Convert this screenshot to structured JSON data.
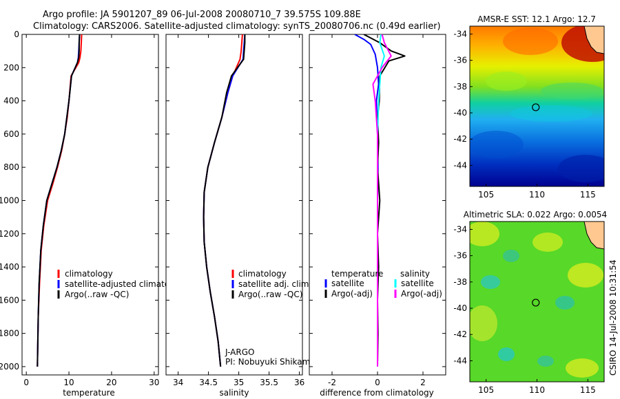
{
  "figure": {
    "title_line1": "Argo profile: JA 5901207_89 06-Jul-2008 20080710_7 39.575S 109.88E",
    "title_line2": "Climatology: CARS2006. Satellite-adjusted climatology: synTS_20080706.nc (0.49d earlier)",
    "footer": "CSIRO 14-Jul-2008 10:31:54",
    "pi_agency": "J-ARGO",
    "pi_name": "PI: Nobuyuki Shikama"
  },
  "colors": {
    "climatology": "#ff0000",
    "satellite": "#0000ff",
    "argo": "#000000",
    "sal_satellite": "#00ffff",
    "sal_argo": "#ff00ff"
  },
  "chart_data": [
    {
      "type": "line",
      "id": "temperature",
      "xlabel": "temperature",
      "xlim": [
        -1,
        31
      ],
      "ylim": [
        2050,
        0
      ],
      "xticks": [
        0,
        10,
        20,
        30
      ],
      "yticks": [
        0,
        200,
        400,
        600,
        800,
        1000,
        1200,
        1400,
        1600,
        1800,
        2000
      ],
      "legend": [
        "climatology",
        "satellite-adjusted climatology",
        "Argo(..raw -QC)"
      ],
      "series": [
        {
          "name": "climatology",
          "color": "#ff0000",
          "x": [
            13.0,
            12.9,
            12.8,
            12.6,
            12.3,
            10.5,
            10.0,
            9.6,
            9.0,
            8.3,
            7.3,
            6.2,
            5.0,
            4.1,
            3.5,
            3.1,
            2.8,
            2.6
          ],
          "y": [
            0,
            50,
            100,
            140,
            170,
            250,
            400,
            500,
            600,
            700,
            800,
            900,
            1000,
            1150,
            1300,
            1500,
            1700,
            2000
          ]
        },
        {
          "name": "satellite-adjusted climatology",
          "color": "#0000ff",
          "x": [
            12.5,
            12.4,
            12.3,
            12.2,
            12.0,
            10.6,
            10.0,
            9.5,
            9.0,
            8.2,
            7.2,
            6.0,
            4.8,
            4.0,
            3.4,
            3.0,
            2.8,
            2.6
          ],
          "y": [
            0,
            50,
            100,
            140,
            170,
            250,
            400,
            500,
            600,
            700,
            800,
            900,
            1000,
            1150,
            1300,
            1500,
            1700,
            2000
          ]
        },
        {
          "name": "Argo(..raw -QC)",
          "color": "#000000",
          "x": [
            12.5,
            12.4,
            12.4,
            12.3,
            12.0,
            10.6,
            10.0,
            9.5,
            9.0,
            8.2,
            7.2,
            6.0,
            4.8,
            4.0,
            3.4,
            3.0,
            2.8,
            2.6
          ],
          "y": [
            0,
            50,
            100,
            140,
            170,
            250,
            400,
            500,
            600,
            700,
            800,
            900,
            1000,
            1150,
            1300,
            1500,
            1700,
            2000
          ]
        }
      ]
    },
    {
      "type": "line",
      "id": "salinity",
      "xlabel": "salinity",
      "xlim": [
        33.8,
        36.05
      ],
      "ylim": [
        2050,
        0
      ],
      "xticks": [
        34,
        34.5,
        35,
        35.5,
        36
      ],
      "legend": [
        "climatology",
        "satellite adj. clim.",
        "Argo(..raw -QC)"
      ],
      "series": [
        {
          "name": "climatology",
          "color": "#ff0000",
          "x": [
            35.06,
            35.05,
            35.04,
            35.02,
            34.9,
            34.82,
            34.72,
            34.6,
            34.49,
            34.43,
            34.42,
            34.43,
            34.47,
            34.53,
            34.6,
            34.66,
            34.7
          ],
          "y": [
            0,
            50,
            100,
            150,
            250,
            350,
            500,
            650,
            800,
            950,
            1100,
            1250,
            1400,
            1550,
            1700,
            1850,
            2000
          ]
        },
        {
          "name": "satellite adj. clim.",
          "color": "#0000ff",
          "x": [
            35.1,
            35.09,
            35.08,
            35.07,
            34.9,
            34.82,
            34.72,
            34.6,
            34.49,
            34.43,
            34.42,
            34.43,
            34.47,
            34.53,
            34.6,
            34.66,
            34.7
          ],
          "y": [
            0,
            50,
            100,
            150,
            250,
            350,
            500,
            650,
            800,
            950,
            1100,
            1250,
            1400,
            1550,
            1700,
            1850,
            2000
          ]
        },
        {
          "name": "Argo(..raw -QC)",
          "color": "#000000",
          "x": [
            35.1,
            35.1,
            35.09,
            35.08,
            34.88,
            34.8,
            34.72,
            34.6,
            34.49,
            34.43,
            34.42,
            34.43,
            34.47,
            34.53,
            34.6,
            34.66,
            34.7
          ],
          "y": [
            0,
            50,
            100,
            150,
            250,
            350,
            500,
            650,
            800,
            950,
            1100,
            1250,
            1400,
            1550,
            1700,
            1850,
            2000
          ]
        }
      ]
    },
    {
      "type": "line",
      "id": "difference",
      "xlabel": "difference from climatology",
      "xlim": [
        -3,
        3
      ],
      "ylim": [
        2050,
        0
      ],
      "xticks": [
        -2,
        0,
        2
      ],
      "legend_title_left": "temperature",
      "legend_title_right": "salinity",
      "legend_left": [
        "satellite",
        "Argo(-adj)"
      ],
      "legend_right": [
        "satellite",
        "Argo(-adj)"
      ],
      "series": [
        {
          "name": "temperature satellite",
          "color": "#0000ff",
          "x": [
            -1.0,
            -0.6,
            -0.3,
            -0.1,
            0.0,
            0.05,
            -0.05,
            0.0,
            0.02,
            0.0,
            0.0,
            0.0,
            0.0
          ],
          "y": [
            0,
            30,
            60,
            120,
            200,
            300,
            400,
            600,
            800,
            1000,
            1400,
            1700,
            2000
          ]
        },
        {
          "name": "temperature Argo(-adj)",
          "color": "#000000",
          "x": [
            -0.6,
            0.1,
            0.6,
            1.2,
            0.5,
            0.1,
            0.08,
            0.0,
            0.05,
            0.0,
            0.1,
            0.0,
            0.05,
            0.0,
            0.02,
            0.0
          ],
          "y": [
            0,
            50,
            100,
            130,
            160,
            250,
            400,
            500,
            650,
            800,
            1000,
            1200,
            1400,
            1600,
            1800,
            2000
          ]
        },
        {
          "name": "salinity satellite",
          "color": "#00ffff",
          "x": [
            0.15,
            0.1,
            0.3,
            0.15,
            0.05,
            0.0,
            0.0,
            0.0,
            0.0,
            0.0,
            0.0
          ],
          "y": [
            0,
            50,
            130,
            200,
            400,
            600,
            800,
            1200,
            1500,
            1800,
            2000
          ]
        },
        {
          "name": "salinity Argo(-adj)",
          "color": "#ff00ff",
          "x": [
            0.2,
            0.3,
            0.6,
            0.2,
            -0.2,
            -0.1,
            0.0,
            0.0,
            0.0,
            0.0,
            0.0
          ],
          "y": [
            0,
            50,
            130,
            200,
            300,
            400,
            600,
            800,
            1200,
            1600,
            2000
          ]
        }
      ]
    },
    {
      "type": "heatmap",
      "id": "sst_map",
      "title": "AMSR-E SST: 12.1 Argo: 12.7",
      "xlim": [
        103.4,
        116.6
      ],
      "ylim": [
        -45.6,
        -33.4
      ],
      "xticks": [
        105,
        110,
        115
      ],
      "yticks": [
        -34,
        -36,
        -38,
        -40,
        -42,
        -44
      ],
      "marker": {
        "lon": 109.88,
        "lat": -39.575
      }
    },
    {
      "type": "heatmap",
      "id": "sla_map",
      "title": "Altimetric SLA: 0.022 Argo: 0.0054",
      "xlim": [
        103.4,
        116.6
      ],
      "ylim": [
        -45.6,
        -33.4
      ],
      "xticks": [
        105,
        110,
        115
      ],
      "yticks": [
        -34,
        -36,
        -38,
        -40,
        -42,
        -44
      ],
      "marker": {
        "lon": 109.88,
        "lat": -39.575
      }
    }
  ]
}
